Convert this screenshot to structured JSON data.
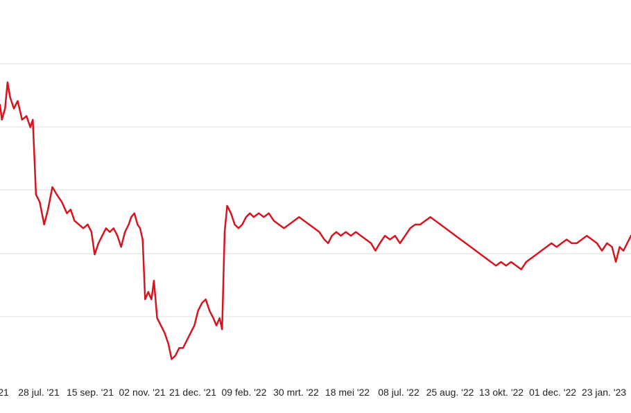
{
  "chart_data": {
    "type": "line",
    "title": "",
    "xlabel": "",
    "ylabel": "",
    "grid": true,
    "line_color": "#d7131f",
    "x_tick_labels": [
      "21",
      "28 jul. '21",
      "15 sep. '21",
      "02 nov. '21",
      "21 dec. '21",
      "09 feb. '22",
      "30 mrt. '22",
      "18 mei '22",
      "08 jul. '22",
      "25 aug. '22",
      "13 okt. '22",
      "01 dec. '22",
      "23 jan. '23"
    ],
    "x_index_range": [
      0,
      100
    ],
    "ylim": [
      0,
      100
    ],
    "series": [
      {
        "values": [
          [
            0,
            72
          ],
          [
            0.3,
            68
          ],
          [
            0.8,
            71
          ],
          [
            1.2,
            78
          ],
          [
            1.6,
            74
          ],
          [
            2.2,
            71
          ],
          [
            2.8,
            73
          ],
          [
            3.5,
            68
          ],
          [
            4.2,
            69
          ],
          [
            4.8,
            66
          ],
          [
            5.2,
            68
          ],
          [
            5.7,
            48
          ],
          [
            6.3,
            46
          ],
          [
            7.0,
            40
          ],
          [
            7.6,
            44
          ],
          [
            8.3,
            50
          ],
          [
            9.0,
            48
          ],
          [
            9.8,
            46
          ],
          [
            10.6,
            43
          ],
          [
            11.2,
            44
          ],
          [
            11.8,
            41
          ],
          [
            12.5,
            40
          ],
          [
            13.2,
            39
          ],
          [
            13.9,
            40
          ],
          [
            14.5,
            38
          ],
          [
            15.0,
            32
          ],
          [
            15.6,
            35
          ],
          [
            16.2,
            37
          ],
          [
            16.8,
            39
          ],
          [
            17.4,
            38
          ],
          [
            18.0,
            39
          ],
          [
            18.6,
            37
          ],
          [
            19.2,
            34
          ],
          [
            19.8,
            38
          ],
          [
            20.4,
            40
          ],
          [
            20.8,
            42
          ],
          [
            21.3,
            43
          ],
          [
            21.8,
            40
          ],
          [
            22.2,
            39
          ],
          [
            22.6,
            36
          ],
          [
            23.0,
            20
          ],
          [
            23.5,
            22
          ],
          [
            24.0,
            20
          ],
          [
            24.4,
            25
          ],
          [
            24.9,
            15
          ],
          [
            25.5,
            13
          ],
          [
            26.1,
            11
          ],
          [
            26.7,
            8
          ],
          [
            27.2,
            4
          ],
          [
            27.8,
            5
          ],
          [
            28.4,
            7
          ],
          [
            29.0,
            7
          ],
          [
            29.6,
            9
          ],
          [
            30.2,
            11
          ],
          [
            30.8,
            13
          ],
          [
            31.4,
            17
          ],
          [
            32.0,
            19
          ],
          [
            32.6,
            20
          ],
          [
            33.2,
            17
          ],
          [
            33.8,
            15
          ],
          [
            34.3,
            13
          ],
          [
            34.8,
            15
          ],
          [
            35.2,
            12
          ],
          [
            35.6,
            38
          ],
          [
            36.0,
            45
          ],
          [
            36.6,
            43
          ],
          [
            37.2,
            40
          ],
          [
            37.8,
            39
          ],
          [
            38.4,
            40
          ],
          [
            39.0,
            42
          ],
          [
            39.6,
            43
          ],
          [
            40.2,
            42
          ],
          [
            41.0,
            43
          ],
          [
            41.8,
            42
          ],
          [
            42.6,
            43
          ],
          [
            43.4,
            41
          ],
          [
            44.2,
            40
          ],
          [
            45.0,
            39
          ],
          [
            45.8,
            40
          ],
          [
            46.6,
            41
          ],
          [
            47.4,
            42
          ],
          [
            48.2,
            41
          ],
          [
            49.0,
            40
          ],
          [
            49.8,
            39
          ],
          [
            50.6,
            38
          ],
          [
            51.4,
            36
          ],
          [
            52.0,
            35
          ],
          [
            52.6,
            37
          ],
          [
            53.3,
            38
          ],
          [
            54.0,
            37
          ],
          [
            54.8,
            38
          ],
          [
            55.6,
            37
          ],
          [
            56.4,
            38
          ],
          [
            57.2,
            37
          ],
          [
            58.0,
            36
          ],
          [
            58.8,
            35
          ],
          [
            59.5,
            33
          ],
          [
            60.2,
            35
          ],
          [
            61.0,
            37
          ],
          [
            61.8,
            36
          ],
          [
            62.6,
            37
          ],
          [
            63.4,
            35
          ],
          [
            64.2,
            37
          ],
          [
            65.0,
            39
          ],
          [
            65.8,
            40
          ],
          [
            66.6,
            40
          ],
          [
            67.4,
            41
          ],
          [
            68.2,
            42
          ],
          [
            69.0,
            41
          ],
          [
            69.8,
            40
          ],
          [
            70.6,
            39
          ],
          [
            71.4,
            38
          ],
          [
            72.2,
            37
          ],
          [
            73.0,
            36
          ],
          [
            73.8,
            35
          ],
          [
            74.6,
            34
          ],
          [
            75.4,
            33
          ],
          [
            76.2,
            32
          ],
          [
            77.0,
            31
          ],
          [
            77.8,
            30
          ],
          [
            78.6,
            29
          ],
          [
            79.4,
            30
          ],
          [
            80.2,
            29
          ],
          [
            81.0,
            30
          ],
          [
            81.8,
            29
          ],
          [
            82.6,
            28
          ],
          [
            83.4,
            30
          ],
          [
            84.2,
            31
          ],
          [
            85.0,
            32
          ],
          [
            85.8,
            33
          ],
          [
            86.6,
            34
          ],
          [
            87.4,
            35
          ],
          [
            88.2,
            34
          ],
          [
            89.0,
            35
          ],
          [
            89.8,
            36
          ],
          [
            90.6,
            35
          ],
          [
            91.4,
            35
          ],
          [
            92.2,
            36
          ],
          [
            93.0,
            37
          ],
          [
            93.8,
            36
          ],
          [
            94.6,
            35
          ],
          [
            95.4,
            33
          ],
          [
            96.2,
            35
          ],
          [
            97.0,
            34
          ],
          [
            97.6,
            30
          ],
          [
            98.2,
            34
          ],
          [
            98.8,
            33
          ],
          [
            99.4,
            35
          ],
          [
            100,
            37
          ]
        ]
      }
    ]
  }
}
